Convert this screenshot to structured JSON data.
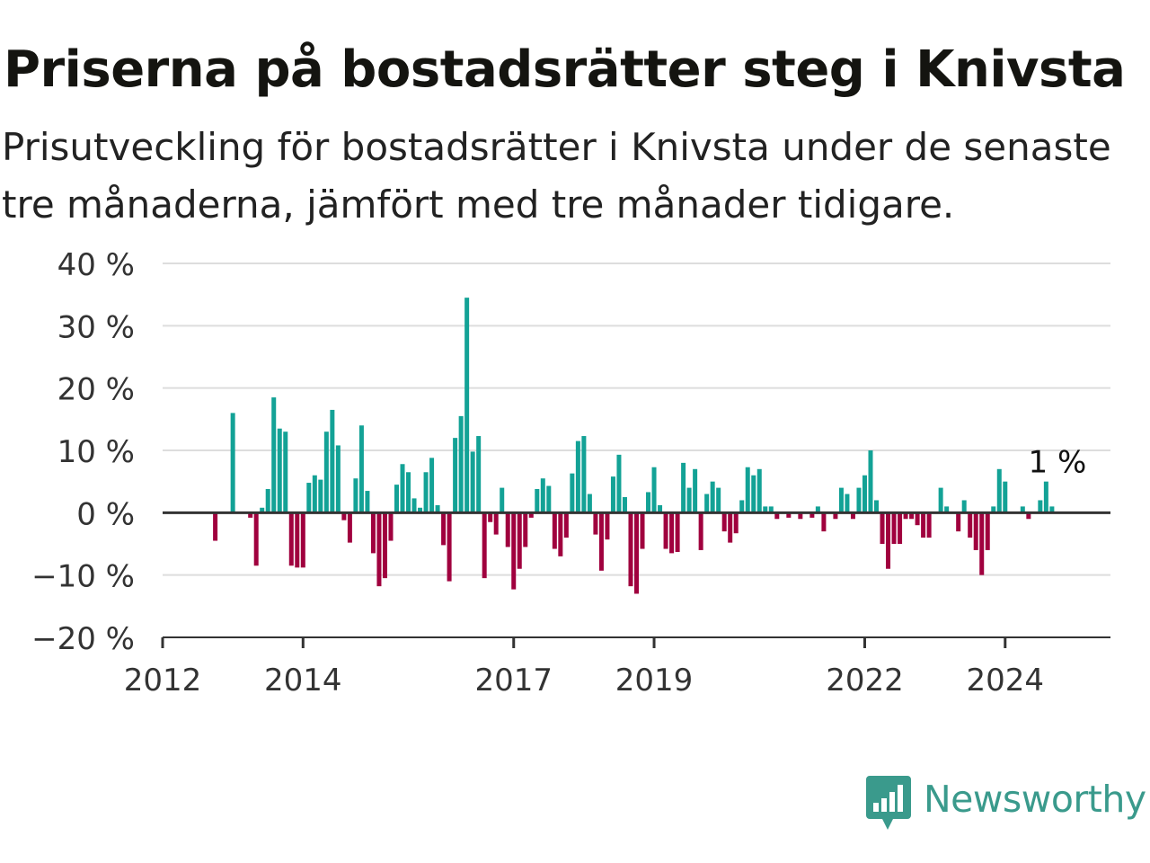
{
  "title": "Priserna på bostadsrätter steg i Knivsta",
  "subtitle": "Prisutveckling för bostadsrätter i Knivsta under de senaste tre månaderna, jämfört med tre månader tidigare.",
  "brand": {
    "name": "Newsworthy",
    "logo_icon": "bar-chart-speech-bubble-icon",
    "color": "#3a9a8c"
  },
  "colors": {
    "positive": "#13a296",
    "negative": "#a0003e",
    "grid": "#dddddd",
    "axis": "#333333",
    "text": "#333333"
  },
  "chart_data": {
    "type": "bar",
    "x_axis_type": "time",
    "x_start": "2012-01",
    "xlim": [
      "2012-01",
      "2025-07"
    ],
    "x_ticks": [
      "2012",
      "2014",
      "2017",
      "2019",
      "2022",
      "2024"
    ],
    "y_ticks": [
      40,
      30,
      20,
      10,
      0,
      -10,
      -20
    ],
    "y_tick_labels": [
      "40 %",
      "30 %",
      "20 %",
      "10 %",
      "0 %",
      "−10 %",
      "−20 %"
    ],
    "ylim": [
      -20,
      40
    ],
    "ylabel": "",
    "xlabel": "",
    "grid": true,
    "color_rule": "positive values teal, negative values crimson",
    "last_value_label": "1 %",
    "series": [
      {
        "values": [
          {
            "month": "2012-10",
            "value": -4.5
          },
          {
            "month": "2013-01",
            "value": 16
          },
          {
            "month": "2013-04",
            "value": -0.8
          },
          {
            "month": "2013-05",
            "value": -8.5
          },
          {
            "month": "2013-06",
            "value": 0.8
          },
          {
            "month": "2013-07",
            "value": 3.8
          },
          {
            "month": "2013-08",
            "value": 18.5
          },
          {
            "month": "2013-09",
            "value": 13.5
          },
          {
            "month": "2013-10",
            "value": 13
          },
          {
            "month": "2013-11",
            "value": -8.5
          },
          {
            "month": "2013-12",
            "value": -8.8
          },
          {
            "month": "2014-01",
            "value": -8.8
          },
          {
            "month": "2014-02",
            "value": 4.8
          },
          {
            "month": "2014-03",
            "value": 6
          },
          {
            "month": "2014-04",
            "value": 5.3
          },
          {
            "month": "2014-05",
            "value": 13
          },
          {
            "month": "2014-06",
            "value": 16.5
          },
          {
            "month": "2014-07",
            "value": 10.8
          },
          {
            "month": "2014-08",
            "value": -1.2
          },
          {
            "month": "2014-09",
            "value": -4.8
          },
          {
            "month": "2014-10",
            "value": 5.5
          },
          {
            "month": "2014-11",
            "value": 14
          },
          {
            "month": "2014-12",
            "value": 3.5
          },
          {
            "month": "2015-01",
            "value": -6.5
          },
          {
            "month": "2015-02",
            "value": -11.8
          },
          {
            "month": "2015-03",
            "value": -10.5
          },
          {
            "month": "2015-04",
            "value": -4.5
          },
          {
            "month": "2015-05",
            "value": 4.5
          },
          {
            "month": "2015-06",
            "value": 7.8
          },
          {
            "month": "2015-07",
            "value": 6.5
          },
          {
            "month": "2015-08",
            "value": 2.3
          },
          {
            "month": "2015-09",
            "value": 0.8
          },
          {
            "month": "2015-10",
            "value": 6.5
          },
          {
            "month": "2015-11",
            "value": 8.8
          },
          {
            "month": "2015-12",
            "value": 1.2
          },
          {
            "month": "2016-01",
            "value": -5.2
          },
          {
            "month": "2016-02",
            "value": -11
          },
          {
            "month": "2016-03",
            "value": 12
          },
          {
            "month": "2016-04",
            "value": 15.5
          },
          {
            "month": "2016-05",
            "value": 34.5
          },
          {
            "month": "2016-06",
            "value": 9.8
          },
          {
            "month": "2016-07",
            "value": 12.3
          },
          {
            "month": "2016-08",
            "value": -10.5
          },
          {
            "month": "2016-09",
            "value": -1.5
          },
          {
            "month": "2016-10",
            "value": -3.5
          },
          {
            "month": "2016-11",
            "value": 4
          },
          {
            "month": "2016-12",
            "value": -5.5
          },
          {
            "month": "2017-01",
            "value": -12.3
          },
          {
            "month": "2017-02",
            "value": -9
          },
          {
            "month": "2017-03",
            "value": -5.5
          },
          {
            "month": "2017-04",
            "value": -0.8
          },
          {
            "month": "2017-05",
            "value": 3.8
          },
          {
            "month": "2017-06",
            "value": 5.5
          },
          {
            "month": "2017-07",
            "value": 4.3
          },
          {
            "month": "2017-08",
            "value": -5.8
          },
          {
            "month": "2017-09",
            "value": -7
          },
          {
            "month": "2017-10",
            "value": -4
          },
          {
            "month": "2017-11",
            "value": 6.3
          },
          {
            "month": "2017-12",
            "value": 11.5
          },
          {
            "month": "2018-01",
            "value": 12.3
          },
          {
            "month": "2018-02",
            "value": 3
          },
          {
            "month": "2018-03",
            "value": -3.5
          },
          {
            "month": "2018-04",
            "value": -9.3
          },
          {
            "month": "2018-05",
            "value": -4.3
          },
          {
            "month": "2018-06",
            "value": 5.8
          },
          {
            "month": "2018-07",
            "value": 9.3
          },
          {
            "month": "2018-08",
            "value": 2.5
          },
          {
            "month": "2018-09",
            "value": -11.8
          },
          {
            "month": "2018-10",
            "value": -13
          },
          {
            "month": "2018-11",
            "value": -5.8
          },
          {
            "month": "2018-12",
            "value": 3.3
          },
          {
            "month": "2019-01",
            "value": 7.3
          },
          {
            "month": "2019-02",
            "value": 1.2
          },
          {
            "month": "2019-03",
            "value": -5.8
          },
          {
            "month": "2019-04",
            "value": -6.5
          },
          {
            "month": "2019-05",
            "value": -6.3
          },
          {
            "month": "2019-06",
            "value": 8
          },
          {
            "month": "2019-07",
            "value": 4
          },
          {
            "month": "2019-08",
            "value": 7
          },
          {
            "month": "2019-09",
            "value": -6
          },
          {
            "month": "2019-10",
            "value": 3
          },
          {
            "month": "2019-11",
            "value": 5
          },
          {
            "month": "2019-12",
            "value": 4
          },
          {
            "month": "2020-01",
            "value": -3
          },
          {
            "month": "2020-02",
            "value": -4.8
          },
          {
            "month": "2020-03",
            "value": -3.3
          },
          {
            "month": "2020-04",
            "value": 2
          },
          {
            "month": "2020-05",
            "value": 7.3
          },
          {
            "month": "2020-06",
            "value": 6
          },
          {
            "month": "2020-07",
            "value": 7
          },
          {
            "month": "2020-08",
            "value": 1
          },
          {
            "month": "2020-09",
            "value": 1
          },
          {
            "month": "2020-10",
            "value": -1
          },
          {
            "month": "2020-12",
            "value": -0.8
          },
          {
            "month": "2021-02",
            "value": -1
          },
          {
            "month": "2021-04",
            "value": -0.8
          },
          {
            "month": "2021-05",
            "value": 1
          },
          {
            "month": "2021-06",
            "value": -3
          },
          {
            "month": "2021-08",
            "value": -1
          },
          {
            "month": "2021-09",
            "value": 4
          },
          {
            "month": "2021-10",
            "value": 3
          },
          {
            "month": "2021-11",
            "value": -1
          },
          {
            "month": "2021-12",
            "value": 4
          },
          {
            "month": "2022-01",
            "value": 6
          },
          {
            "month": "2022-02",
            "value": 10
          },
          {
            "month": "2022-03",
            "value": 2
          },
          {
            "month": "2022-04",
            "value": -5
          },
          {
            "month": "2022-05",
            "value": -9
          },
          {
            "month": "2022-06",
            "value": -5
          },
          {
            "month": "2022-07",
            "value": -5
          },
          {
            "month": "2022-08",
            "value": -1
          },
          {
            "month": "2022-09",
            "value": -1
          },
          {
            "month": "2022-10",
            "value": -2
          },
          {
            "month": "2022-11",
            "value": -4
          },
          {
            "month": "2022-12",
            "value": -4
          },
          {
            "month": "2023-02",
            "value": 4
          },
          {
            "month": "2023-03",
            "value": 1
          },
          {
            "month": "2023-05",
            "value": -3
          },
          {
            "month": "2023-06",
            "value": 2
          },
          {
            "month": "2023-07",
            "value": -4
          },
          {
            "month": "2023-08",
            "value": -6
          },
          {
            "month": "2023-09",
            "value": -10
          },
          {
            "month": "2023-10",
            "value": -6
          },
          {
            "month": "2023-11",
            "value": 1
          },
          {
            "month": "2023-12",
            "value": 7
          },
          {
            "month": "2024-01",
            "value": 5
          },
          {
            "month": "2024-04",
            "value": 1
          },
          {
            "month": "2024-05",
            "value": -1
          },
          {
            "month": "2024-07",
            "value": 2
          },
          {
            "month": "2024-08",
            "value": 5
          },
          {
            "month": "2024-09",
            "value": 1
          }
        ]
      }
    ]
  }
}
